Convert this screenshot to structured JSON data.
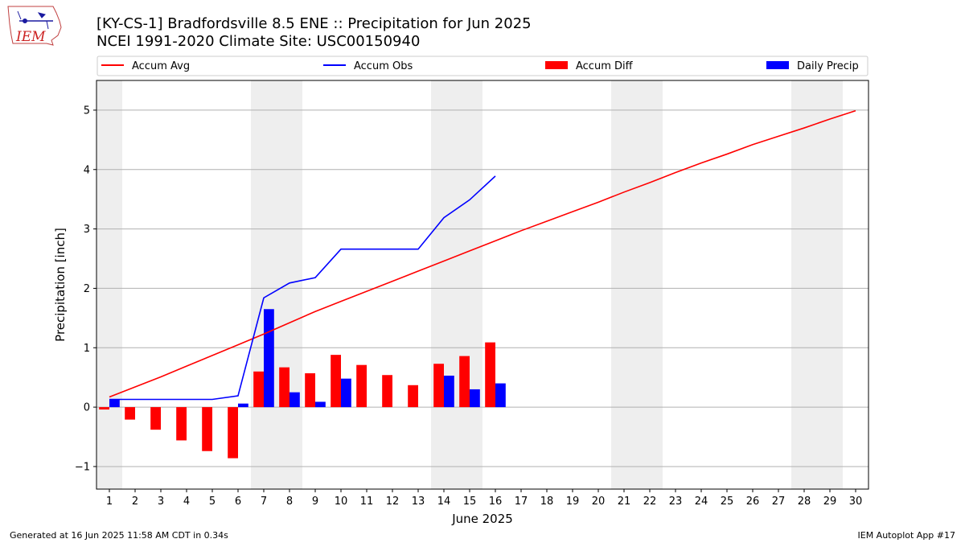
{
  "header": {
    "title_line1": "[KY-CS-1] Bradfordsville 8.5 ENE :: Precipitation for Jun 2025",
    "title_line2": "NCEI 1991-2020 Climate Site: USC00150940",
    "logo_text": "IEM"
  },
  "footer": {
    "generated": "Generated at 16 Jun 2025 11:58 AM CDT in 0.34s",
    "app": "IEM Autoplot App #17"
  },
  "colors": {
    "accum_avg": "#ff0000",
    "accum_obs": "#0000ff",
    "accum_diff": "#ff0000",
    "daily_precip": "#0000ff",
    "weekend_shade": "#eeeeee",
    "grid": "#b0b0b0"
  },
  "chart_data": {
    "type": "bar",
    "xlabel": "June 2025",
    "ylabel": "Precipitation [inch]",
    "xlim": [
      0.5,
      30.5
    ],
    "ylim": [
      -1.38,
      5.5
    ],
    "y_ticks": [
      -1,
      0,
      1,
      2,
      3,
      4,
      5
    ],
    "y_tick_labels": [
      "−1",
      "0",
      "1",
      "2",
      "3",
      "4",
      "5"
    ],
    "days": [
      1,
      2,
      3,
      4,
      5,
      6,
      7,
      8,
      9,
      10,
      11,
      12,
      13,
      14,
      15,
      16,
      17,
      18,
      19,
      20,
      21,
      22,
      23,
      24,
      25,
      26,
      27,
      28,
      29,
      30
    ],
    "weekend_shaded_days": [
      1,
      7,
      8,
      14,
      15,
      21,
      22,
      28,
      29
    ],
    "grid": "horizontal",
    "legend_placement": "top, above plot",
    "series": [
      {
        "name": "Accum Avg",
        "kind": "line",
        "x": [
          1,
          2,
          3,
          4,
          5,
          6,
          7,
          8,
          9,
          10,
          11,
          12,
          13,
          14,
          15,
          16,
          17,
          18,
          19,
          20,
          21,
          22,
          23,
          24,
          25,
          26,
          27,
          28,
          29,
          30
        ],
        "values": [
          0.17,
          0.34,
          0.51,
          0.69,
          0.87,
          1.05,
          1.23,
          1.42,
          1.61,
          1.78,
          1.95,
          2.12,
          2.29,
          2.46,
          2.63,
          2.8,
          2.97,
          3.13,
          3.29,
          3.45,
          3.62,
          3.78,
          3.95,
          4.11,
          4.26,
          4.42,
          4.56,
          4.7,
          4.85,
          4.99
        ]
      },
      {
        "name": "Accum Obs",
        "kind": "line",
        "x": [
          1,
          2,
          3,
          4,
          5,
          6,
          7,
          8,
          9,
          10,
          11,
          12,
          13,
          14,
          15,
          16
        ],
        "values": [
          0.13,
          0.13,
          0.13,
          0.13,
          0.13,
          0.19,
          1.84,
          2.09,
          2.18,
          2.66,
          2.66,
          2.66,
          2.66,
          3.19,
          3.49,
          3.89
        ]
      },
      {
        "name": "Accum Diff",
        "kind": "bar",
        "x": [
          1,
          2,
          3,
          4,
          5,
          6,
          7,
          8,
          9,
          10,
          11,
          12,
          13,
          14,
          15,
          16
        ],
        "values": [
          -0.04,
          -0.21,
          -0.38,
          -0.56,
          -0.74,
          -0.86,
          0.6,
          0.67,
          0.57,
          0.88,
          0.71,
          0.54,
          0.37,
          0.73,
          0.86,
          1.09
        ]
      },
      {
        "name": "Daily Precip",
        "kind": "bar",
        "x": [
          1,
          2,
          3,
          4,
          5,
          6,
          7,
          8,
          9,
          10,
          11,
          12,
          13,
          14,
          15,
          16
        ],
        "values": [
          0.13,
          0,
          0,
          0,
          0,
          0.06,
          1.65,
          0.25,
          0.09,
          0.48,
          0,
          0,
          0,
          0.53,
          0.3,
          0.4
        ]
      }
    ]
  }
}
